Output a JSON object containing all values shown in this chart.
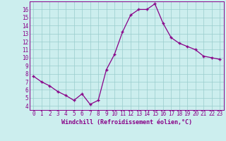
{
  "x": [
    0,
    1,
    2,
    3,
    4,
    5,
    6,
    7,
    8,
    9,
    10,
    11,
    12,
    13,
    14,
    15,
    16,
    17,
    18,
    19,
    20,
    21,
    22,
    23
  ],
  "y": [
    7.7,
    7.0,
    6.5,
    5.8,
    5.3,
    4.7,
    5.5,
    4.2,
    4.7,
    8.5,
    10.4,
    13.2,
    15.3,
    16.0,
    16.0,
    16.7,
    14.3,
    12.5,
    11.8,
    11.4,
    11.0,
    10.2,
    10.0,
    9.8
  ],
  "line_color": "#880088",
  "marker": "+",
  "bg_color": "#cceeee",
  "grid_color": "#99cccc",
  "xlabel": "Windchill (Refroidissement éolien,°C)",
  "xlim": [
    -0.5,
    23.5
  ],
  "ylim": [
    3.5,
    17.0
  ],
  "yticks": [
    4,
    5,
    6,
    7,
    8,
    9,
    10,
    11,
    12,
    13,
    14,
    15,
    16
  ],
  "xticks": [
    0,
    1,
    2,
    3,
    4,
    5,
    6,
    7,
    8,
    9,
    10,
    11,
    12,
    13,
    14,
    15,
    16,
    17,
    18,
    19,
    20,
    21,
    22,
    23
  ],
  "xtick_labels": [
    "0",
    "1",
    "2",
    "3",
    "4",
    "5",
    "6",
    "7",
    "8",
    "9",
    "10",
    "11",
    "12",
    "13",
    "14",
    "15",
    "16",
    "17",
    "18",
    "19",
    "20",
    "21",
    "22",
    "23"
  ],
  "tick_color": "#880088",
  "spine_color": "#880088",
  "label_color": "#880088",
  "tick_fontsize": 5.5,
  "xlabel_fontsize": 6.0
}
